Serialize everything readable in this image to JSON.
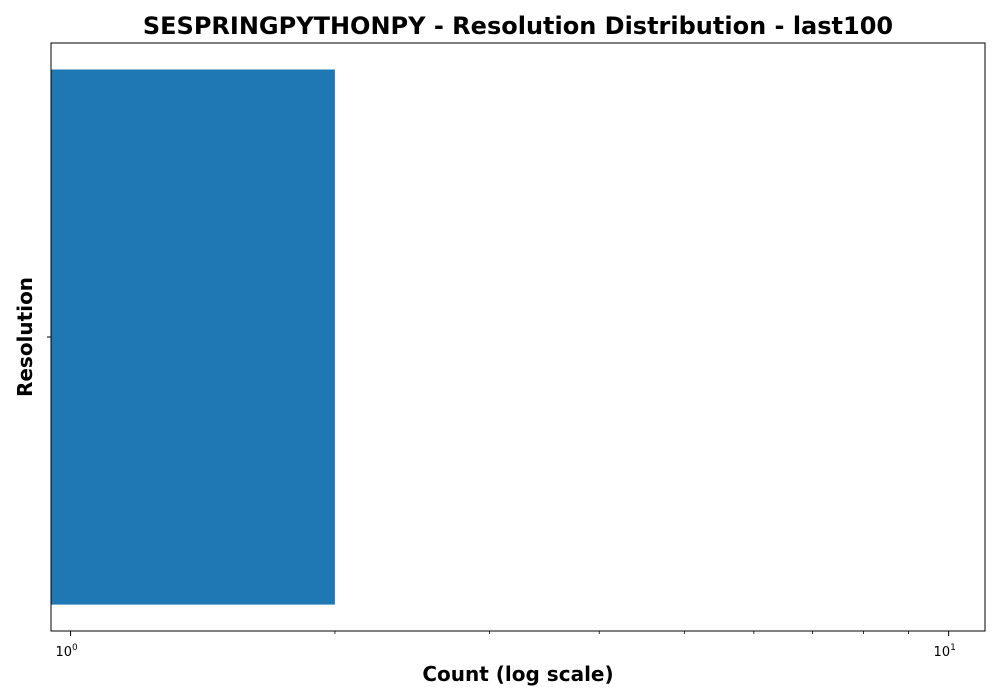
{
  "chart_data": {
    "type": "bar",
    "orientation": "horizontal",
    "title": "SESPRINGPYTHONPY - Resolution Distribution - last100",
    "xlabel": "Count (log scale)",
    "ylabel": "Resolution",
    "x_scale": "log",
    "xlim": [
      0.95,
      11
    ],
    "categories": [
      ""
    ],
    "values": [
      2
    ],
    "x_ticks": [
      {
        "value": 1,
        "base": "10",
        "exp": "0"
      },
      {
        "value": 10,
        "base": "10",
        "exp": "1"
      }
    ],
    "grid": false,
    "legend": "none",
    "bar_color": "#1f77b4"
  }
}
